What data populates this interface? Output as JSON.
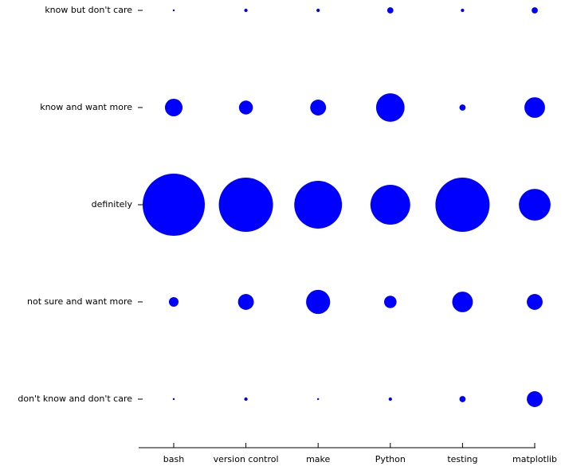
{
  "chart_data": {
    "type": "bubble",
    "x_categories": [
      "bash",
      "version control",
      "make",
      "Python",
      "testing",
      "matplotlib"
    ],
    "y_categories": [
      "know but don't care",
      "know and want more",
      "definitely",
      "not sure and want more",
      "don't know and don't care"
    ],
    "values": [
      [
        0.1,
        0.3,
        0.3,
        1,
        0.3,
        1
      ],
      [
        8,
        5,
        6.5,
        21,
        1,
        11
      ],
      [
        100,
        76,
        59,
        41,
        76,
        26
      ],
      [
        2.4,
        6.5,
        15,
        4,
        11,
        6.5
      ],
      [
        0.1,
        0.3,
        0.1,
        0.3,
        1,
        6.5
      ]
    ],
    "color": "#0000ff"
  }
}
